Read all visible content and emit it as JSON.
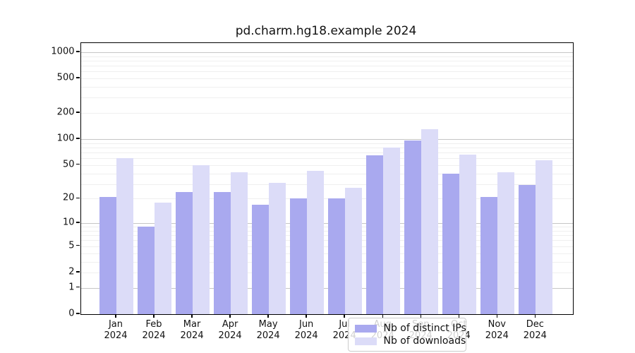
{
  "title": "pd.charm.hg18.example 2024",
  "legend": {
    "items": [
      {
        "label": "Nb of distinct IPs",
        "color": "#a9a9ef"
      },
      {
        "label": "Nb of downloads",
        "color": "#dcdcf8"
      }
    ]
  },
  "colors": {
    "bar_dark": "#a9a9ef",
    "bar_light": "#dcdcf8",
    "grid_major": "#c6c6c6",
    "grid_minor": "#efefef",
    "spine": "#000000"
  },
  "chart_data": {
    "type": "bar",
    "title": "pd.charm.hg18.example 2024",
    "categories": [
      "Jan",
      "Feb",
      "Mar",
      "Apr",
      "May",
      "Jun",
      "Jul",
      "Aug",
      "Sep",
      "Oct",
      "Nov",
      "Dec"
    ],
    "year": "2024",
    "series": [
      {
        "name": "Nb of distinct IPs",
        "color": "#a9a9ef",
        "values": [
          21,
          9,
          24,
          24,
          17,
          20,
          20,
          65,
          97,
          40,
          21,
          29
        ]
      },
      {
        "name": "Nb of downloads",
        "color": "#dcdcf8",
        "values": [
          60,
          18,
          50,
          41,
          31,
          43,
          27,
          80,
          130,
          66,
          41,
          57
        ]
      }
    ],
    "yscale": "log1p",
    "yticks": [
      0,
      1,
      2,
      5,
      10,
      20,
      50,
      100,
      200,
      500,
      1000
    ],
    "ylim": [
      0,
      1271
    ],
    "xlabel": "",
    "ylabel": "",
    "grid": true,
    "legend_position": "lower center"
  }
}
